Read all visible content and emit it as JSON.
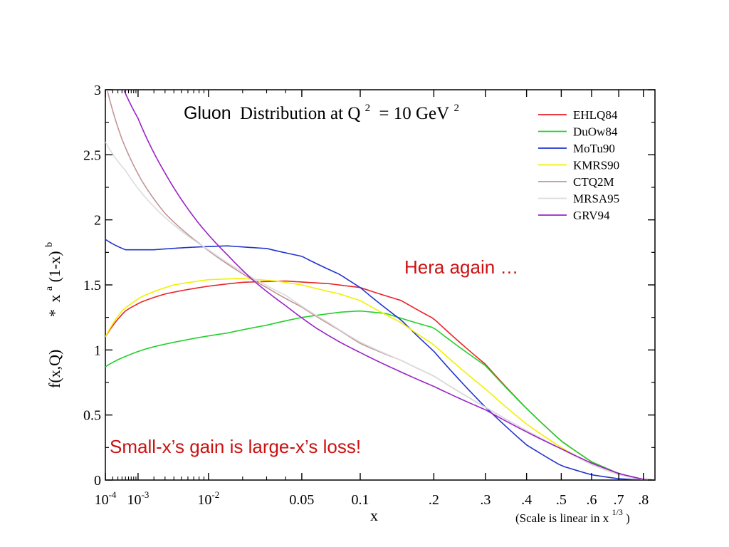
{
  "chart_data": {
    "type": "line",
    "title": {
      "word": "Gluon",
      "rest": "Distribution at Q",
      "sup1": "2",
      "eq": "= 10 GeV",
      "sup2": "2"
    },
    "xlabel": "x",
    "x_note": {
      "prefix": "(Scale is linear in x",
      "sup": "1/3",
      "suffix": ")"
    },
    "ylabel": {
      "main": "f(x,Q)",
      "star": "*",
      "x": "x",
      "x_sup": "a",
      "paren": "(1-x)",
      "paren_sup": "b"
    },
    "x_scale": "linear in x^(1/3)",
    "xlim": [
      0.0001,
      0.85
    ],
    "ylim": [
      0,
      3
    ],
    "y_ticks": [
      "0",
      "0.5",
      "1",
      "1.5",
      "2",
      "2.5",
      "3"
    ],
    "x_ticks": [
      {
        "value": 0.0001,
        "label": "10",
        "sup": "-4"
      },
      {
        "value": 0.001,
        "label": "10",
        "sup": "-3"
      },
      {
        "value": 0.01,
        "label": "10",
        "sup": "-2"
      },
      {
        "value": 0.05,
        "label": "0.05",
        "sup": ""
      },
      {
        "value": 0.1,
        "label": "0.1",
        "sup": ""
      },
      {
        "value": 0.2,
        "label": ".2",
        "sup": ""
      },
      {
        "value": 0.3,
        "label": ".3",
        "sup": ""
      },
      {
        "value": 0.4,
        "label": ".4",
        "sup": ""
      },
      {
        "value": 0.5,
        "label": ".5",
        "sup": ""
      },
      {
        "value": 0.6,
        "label": ".6",
        "sup": ""
      },
      {
        "value": 0.7,
        "label": ".7",
        "sup": ""
      },
      {
        "value": 0.8,
        "label": ".8",
        "sup": ""
      }
    ],
    "legend_position": "top-right",
    "series": [
      {
        "name": "EHLQ84",
        "color": "#e8232a",
        "points": [
          [
            0.0001,
            1.1
          ],
          [
            0.0005,
            1.3
          ],
          [
            0.0012,
            1.37
          ],
          [
            0.003,
            1.43
          ],
          [
            0.01,
            1.49
          ],
          [
            0.02,
            1.52
          ],
          [
            0.04,
            1.53
          ],
          [
            0.07,
            1.51
          ],
          [
            0.1,
            1.48
          ],
          [
            0.15,
            1.38
          ],
          [
            0.2,
            1.24
          ],
          [
            0.3,
            0.89
          ],
          [
            0.4,
            0.55
          ],
          [
            0.5,
            0.3
          ],
          [
            0.6,
            0.14
          ],
          [
            0.7,
            0.05
          ],
          [
            0.8,
            0.005
          ],
          [
            0.85,
            0.0
          ]
        ]
      },
      {
        "name": "DuOw84",
        "color": "#22d02a",
        "points": [
          [
            0.0001,
            0.87
          ],
          [
            0.0005,
            0.95
          ],
          [
            0.0015,
            1.01
          ],
          [
            0.005,
            1.07
          ],
          [
            0.015,
            1.13
          ],
          [
            0.03,
            1.19
          ],
          [
            0.05,
            1.25
          ],
          [
            0.08,
            1.29
          ],
          [
            0.1,
            1.3
          ],
          [
            0.13,
            1.28
          ],
          [
            0.2,
            1.17
          ],
          [
            0.3,
            0.88
          ],
          [
            0.4,
            0.55
          ],
          [
            0.5,
            0.3
          ],
          [
            0.6,
            0.14
          ],
          [
            0.7,
            0.05
          ],
          [
            0.8,
            0.005
          ],
          [
            0.85,
            0.0
          ]
        ]
      },
      {
        "name": "MoTu90",
        "color": "#2233d0",
        "points": [
          [
            0.0001,
            1.85
          ],
          [
            0.0005,
            1.77
          ],
          [
            0.002,
            1.77
          ],
          [
            0.007,
            1.79
          ],
          [
            0.015,
            1.8
          ],
          [
            0.03,
            1.78
          ],
          [
            0.05,
            1.72
          ],
          [
            0.08,
            1.58
          ],
          [
            0.1,
            1.48
          ],
          [
            0.15,
            1.23
          ],
          [
            0.2,
            0.99
          ],
          [
            0.3,
            0.56
          ],
          [
            0.4,
            0.27
          ],
          [
            0.5,
            0.11
          ],
          [
            0.6,
            0.04
          ],
          [
            0.7,
            0.01
          ],
          [
            0.8,
            0.0
          ]
        ]
      },
      {
        "name": "KMRS90",
        "color": "#f2f000",
        "points": [
          [
            0.0001,
            1.1
          ],
          [
            0.0004,
            1.3
          ],
          [
            0.0012,
            1.41
          ],
          [
            0.004,
            1.5
          ],
          [
            0.01,
            1.54
          ],
          [
            0.02,
            1.55
          ],
          [
            0.035,
            1.53
          ],
          [
            0.05,
            1.5
          ],
          [
            0.08,
            1.43
          ],
          [
            0.1,
            1.38
          ],
          [
            0.15,
            1.21
          ],
          [
            0.2,
            1.04
          ],
          [
            0.3,
            0.7
          ],
          [
            0.4,
            0.43
          ],
          [
            0.5,
            0.25
          ],
          [
            0.6,
            0.12
          ],
          [
            0.7,
            0.04
          ],
          [
            0.8,
            0.005
          ],
          [
            0.85,
            0.0
          ]
        ]
      },
      {
        "name": "CTQ2M",
        "color": "#c09696",
        "points": [
          [
            0.00012,
            3.0
          ],
          [
            0.0004,
            2.62
          ],
          [
            0.0012,
            2.3
          ],
          [
            0.003,
            2.05
          ],
          [
            0.008,
            1.82
          ],
          [
            0.015,
            1.66
          ],
          [
            0.03,
            1.48
          ],
          [
            0.05,
            1.33
          ],
          [
            0.08,
            1.15
          ],
          [
            0.1,
            1.05
          ],
          [
            0.15,
            0.92
          ],
          [
            0.2,
            0.8
          ],
          [
            0.3,
            0.56
          ],
          [
            0.4,
            0.38
          ],
          [
            0.5,
            0.24
          ],
          [
            0.6,
            0.12
          ],
          [
            0.7,
            0.04
          ],
          [
            0.8,
            0.005
          ],
          [
            0.85,
            0.0
          ]
        ]
      },
      {
        "name": "MRSA95",
        "color": "#dcdcdc",
        "points": [
          [
            0.0001,
            2.6
          ],
          [
            0.0005,
            2.38
          ],
          [
            0.0015,
            2.16
          ],
          [
            0.004,
            1.96
          ],
          [
            0.01,
            1.77
          ],
          [
            0.02,
            1.6
          ],
          [
            0.04,
            1.42
          ],
          [
            0.07,
            1.21
          ],
          [
            0.1,
            1.06
          ],
          [
            0.15,
            0.92
          ],
          [
            0.2,
            0.8
          ],
          [
            0.3,
            0.56
          ],
          [
            0.4,
            0.38
          ],
          [
            0.5,
            0.24
          ],
          [
            0.6,
            0.12
          ],
          [
            0.7,
            0.04
          ],
          [
            0.8,
            0.005
          ],
          [
            0.85,
            0.0
          ]
        ]
      },
      {
        "name": "GRV94",
        "color": "#9a22c8",
        "points": [
          [
            0.00045,
            3.0
          ],
          [
            0.001,
            2.78
          ],
          [
            0.003,
            2.36
          ],
          [
            0.008,
            1.97
          ],
          [
            0.015,
            1.73
          ],
          [
            0.025,
            1.52
          ],
          [
            0.04,
            1.34
          ],
          [
            0.06,
            1.17
          ],
          [
            0.08,
            1.06
          ],
          [
            0.1,
            0.98
          ],
          [
            0.15,
            0.83
          ],
          [
            0.2,
            0.72
          ],
          [
            0.3,
            0.54
          ],
          [
            0.4,
            0.37
          ],
          [
            0.5,
            0.24
          ],
          [
            0.6,
            0.13
          ],
          [
            0.7,
            0.05
          ],
          [
            0.8,
            0.005
          ],
          [
            0.85,
            0.0
          ]
        ]
      }
    ],
    "annotations": [
      {
        "text": "Hera again …",
        "color": "#cc1111"
      },
      {
        "text": "Small-x’s gain is large-x’s loss!",
        "color": "#cc1111"
      }
    ]
  }
}
